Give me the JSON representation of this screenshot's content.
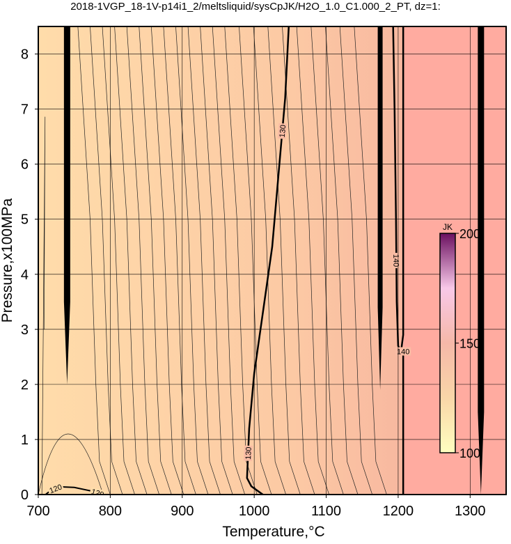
{
  "chart_data": {
    "type": "contour",
    "title": "2018-1VGP_18-1V-p14i1_2/meltsliquid/sysCpJK/H2O_1.0_C1.000_2_PT, dz=1:",
    "x_label": "Temperature,°C",
    "y_label": "Pressure,x100MPa",
    "xlim": [
      700,
      1350
    ],
    "ylim": [
      0,
      8.5
    ],
    "xticks": [
      700,
      800,
      900,
      1000,
      1100,
      1200,
      1300
    ],
    "yticks": [
      0,
      1,
      2,
      3,
      4,
      5,
      6,
      7,
      8
    ],
    "grid": true,
    "regions": [
      {
        "xlim": [
          700,
          1207
        ],
        "color": "#ffd9a6"
      },
      {
        "xlim": [
          1207,
          1350
        ],
        "color": "#ffaba0"
      }
    ],
    "contours": [
      {
        "level": 120,
        "x": [
          710,
          718,
          730,
          750,
          775,
          790
        ],
        "y": [
          0,
          0.08,
          0.14,
          0.13,
          0.06,
          0
        ]
      },
      {
        "level": 130,
        "x": [
          1048,
          1043,
          1035,
          1025,
          1012,
          1000,
          993,
          990,
          996,
          1012
        ],
        "y": [
          8.5,
          7.2,
          6,
          4.5,
          3.3,
          2.2,
          1.2,
          0.3,
          0.15,
          0
        ]
      },
      {
        "level": 140,
        "x": [
          1193,
          1195,
          1197,
          1198,
          1200,
          1204,
          1207,
          1207
        ],
        "y": [
          8.5,
          7,
          5,
          3.5,
          2.7,
          2.6,
          2.9,
          8.5
        ]
      },
      {
        "level": 140,
        "x": [
          1207,
          1207
        ],
        "y": [
          0,
          2.6
        ]
      }
    ],
    "colorbar": {
      "label": "JK",
      "lim": [
        100,
        200
      ],
      "ticks": [
        100,
        150,
        200
      ],
      "colors": [
        "#ffffc0",
        "#f9d6a8",
        "#f6b8a8",
        "#f8c8e8",
        "#6a1060"
      ]
    }
  }
}
